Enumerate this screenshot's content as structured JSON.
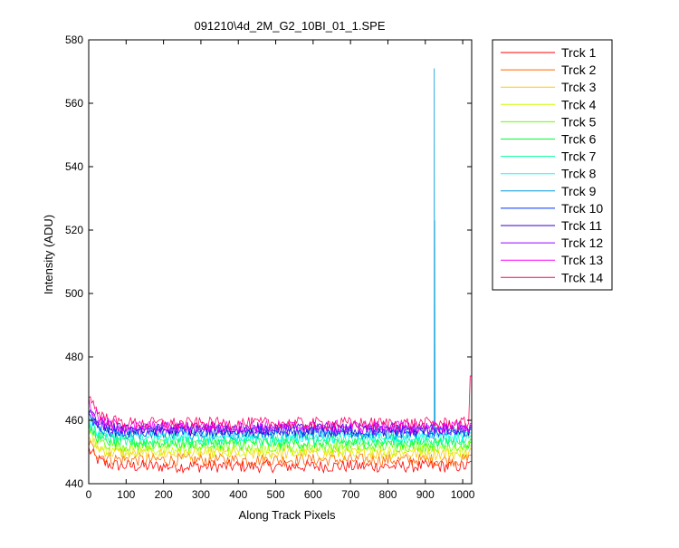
{
  "figure": {
    "title": "091210\\4d_2M_G2_10BI_01_1.SPE"
  },
  "chart_data": {
    "type": "line",
    "title": "091210\\4d_2M_G2_10BI_01_1.SPE",
    "xlabel": "Along Track Pixels",
    "ylabel": "Intensity (ADU)",
    "xlim": [
      0,
      1024
    ],
    "ylim": [
      440,
      580
    ],
    "xticks": [
      0,
      100,
      200,
      300,
      400,
      500,
      600,
      700,
      800,
      900,
      1000
    ],
    "yticks": [
      440,
      460,
      480,
      500,
      520,
      540,
      560,
      580
    ],
    "grid": false,
    "legend_position": "outside-right",
    "x_sample_step": 4,
    "noise_amplitude": 2,
    "series": [
      {
        "name": "Trck 1",
        "color": "#ff0000",
        "start": 451,
        "baseline": 445.5,
        "end": 447
      },
      {
        "name": "Trck 2",
        "color": "#ff6600",
        "start": 453,
        "baseline": 447.5,
        "end": 449
      },
      {
        "name": "Trck 3",
        "color": "#ffcc00",
        "start": 455,
        "baseline": 449.5,
        "end": 451
      },
      {
        "name": "Trck 4",
        "color": "#ccff00",
        "start": 456,
        "baseline": 450.5,
        "end": 452
      },
      {
        "name": "Trck 5",
        "color": "#66ff00",
        "start": 457,
        "baseline": 452,
        "end": 453
      },
      {
        "name": "Trck 6",
        "color": "#00ff33",
        "start": 458,
        "baseline": 453,
        "end": 454
      },
      {
        "name": "Trck 7",
        "color": "#00ff99",
        "start": 459,
        "baseline": 454,
        "end": 455
      },
      {
        "name": "Trck 8",
        "color": "#00ffff",
        "start": 460,
        "baseline": 455,
        "end": 456
      },
      {
        "name": "Trck 9",
        "color": "#0099dd",
        "start": 461,
        "baseline": 456,
        "end": 457,
        "spike_x": 924,
        "spike_peak": 571,
        "spike_secondary": 523
      },
      {
        "name": "Trck 10",
        "color": "#0033ff",
        "start": 462,
        "baseline": 456.5,
        "end": 457.5
      },
      {
        "name": "Trck 11",
        "color": "#3300cc",
        "start": 463,
        "baseline": 457,
        "end": 458
      },
      {
        "name": "Trck 12",
        "color": "#9900ff",
        "start": 464,
        "baseline": 457.5,
        "end": 458.5
      },
      {
        "name": "Trck 13",
        "color": "#ff00ff",
        "start": 466,
        "baseline": 458,
        "end": 459
      },
      {
        "name": "Trck 14",
        "color": "#ff0066",
        "start": 469,
        "baseline": 459,
        "end": 474
      }
    ]
  }
}
